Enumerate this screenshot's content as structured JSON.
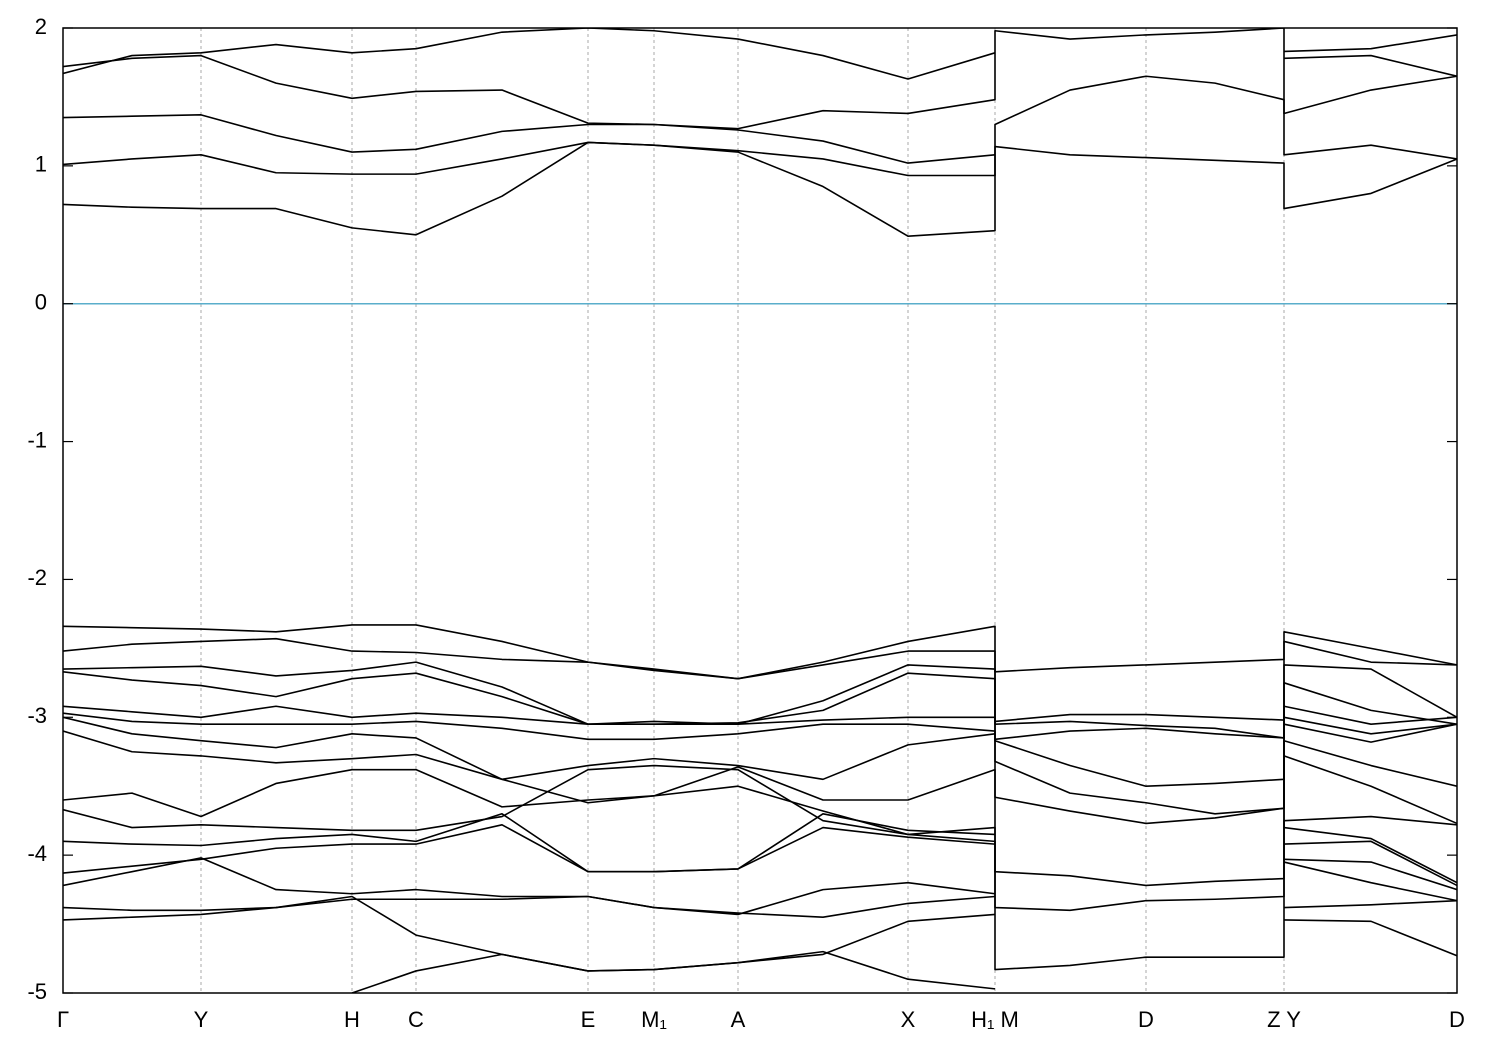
{
  "chart_data": {
    "type": "line",
    "color": "#000000",
    "hline": {
      "value": 0,
      "color": "#5aaecb"
    },
    "grid": "x",
    "xlim": [
      0,
      13.94
    ],
    "ylim": [
      -5,
      2
    ],
    "yticks": [
      -5,
      -4,
      -3,
      -2,
      -1,
      0,
      1,
      2
    ],
    "xticks": [
      {
        "value": 0,
        "label": "Γ"
      },
      {
        "value": 1.38,
        "label": "Y"
      },
      {
        "value": 2.89,
        "label": "H"
      },
      {
        "value": 3.53,
        "label": "C"
      },
      {
        "value": 5.25,
        "label": "E"
      },
      {
        "value": 5.91,
        "label": "M₁"
      },
      {
        "value": 6.75,
        "label": "A"
      },
      {
        "value": 8.45,
        "label": "X"
      },
      {
        "value": 9.32,
        "label": "H₁ M"
      },
      {
        "value": 10.83,
        "label": "D"
      },
      {
        "value": 12.21,
        "label": "Z Y"
      },
      {
        "value": 13.94,
        "label": "D"
      }
    ],
    "x": [
      0,
      0.69,
      1.38,
      2.13,
      2.89,
      3.53,
      4.39,
      5.25,
      5.91,
      6.75,
      7.6,
      8.45,
      9.32,
      9.32,
      10.07,
      10.83,
      11.52,
      12.21,
      12.21,
      13.08,
      13.94
    ],
    "series": [
      {
        "values": [
          0.72,
          0.7,
          0.69,
          0.69,
          0.55,
          0.5,
          0.78,
          1.17,
          1.15,
          1.1,
          0.85,
          0.49,
          0.53,
          1.14,
          1.08,
          1.06,
          1.04,
          1.02,
          0.69,
          0.8,
          1.05
        ]
      },
      {
        "values": [
          1.01,
          1.05,
          1.08,
          0.95,
          0.94,
          0.94,
          1.05,
          1.17,
          1.15,
          1.11,
          1.05,
          0.93,
          0.93,
          1.3,
          1.55,
          1.65,
          1.6,
          1.48,
          1.08,
          1.15,
          1.05
        ]
      },
      {
        "values": [
          1.35,
          1.36,
          1.37,
          1.22,
          1.1,
          1.12,
          1.25,
          1.3,
          1.3,
          1.27,
          1.4,
          1.38,
          1.48,
          1.98,
          1.92,
          1.95,
          1.97,
          2.0,
          1.38,
          1.55,
          1.65
        ]
      },
      {
        "values": [
          1.72,
          1.78,
          1.8,
          1.6,
          1.49,
          1.54,
          1.55,
          1.31,
          1.3,
          1.26,
          1.18,
          1.02,
          1.08,
          null,
          null,
          null,
          null,
          null,
          1.78,
          1.8,
          1.65
        ]
      },
      {
        "values": [
          1.67,
          1.8,
          1.82,
          1.88,
          1.82,
          1.85,
          1.97,
          2.0,
          1.98,
          1.92,
          1.8,
          1.63,
          1.82,
          null,
          null,
          null,
          null,
          null,
          1.83,
          1.85,
          1.95
        ]
      },
      {
        "values": [
          -2.34,
          -2.35,
          -2.36,
          -2.38,
          -2.33,
          -2.33,
          -2.45,
          -2.6,
          -2.65,
          -2.72,
          -2.6,
          -2.45,
          -2.34,
          -2.67,
          -2.64,
          -2.62,
          -2.6,
          -2.58,
          -2.38,
          -2.5,
          -2.62
        ]
      },
      {
        "values": [
          -2.52,
          -2.47,
          -2.45,
          -2.43,
          -2.52,
          -2.53,
          -2.58,
          -2.6,
          -2.66,
          -2.72,
          -2.62,
          -2.52,
          -2.52,
          -3.03,
          -2.98,
          -2.98,
          -3.0,
          -3.02,
          -2.45,
          -2.6,
          -2.62
        ]
      },
      {
        "values": [
          -2.65,
          -2.64,
          -2.63,
          -2.7,
          -2.66,
          -2.6,
          -2.78,
          -3.05,
          -3.05,
          -3.05,
          -2.88,
          -2.62,
          -2.65,
          -3.05,
          -3.03,
          -3.06,
          -3.08,
          -3.15,
          -2.62,
          -2.65,
          -3.0
        ]
      },
      {
        "values": [
          -2.67,
          -2.73,
          -2.77,
          -2.85,
          -2.72,
          -2.68,
          -2.85,
          -3.05,
          -3.05,
          -3.04,
          -2.95,
          -2.68,
          -2.72,
          -3.16,
          -3.1,
          -3.08,
          -3.12,
          -3.15,
          -2.75,
          -2.95,
          -3.05
        ]
      },
      {
        "values": [
          -2.92,
          -2.96,
          -3.0,
          -2.92,
          -3.0,
          -2.97,
          -3.0,
          -3.05,
          -3.03,
          -3.05,
          -3.02,
          -3.0,
          -3.0,
          -3.17,
          -3.35,
          -3.5,
          -3.48,
          -3.45,
          -2.92,
          -3.05,
          -3.0
        ]
      },
      {
        "values": [
          -2.97,
          -3.03,
          -3.05,
          -3.05,
          -3.05,
          -3.03,
          -3.08,
          -3.16,
          -3.16,
          -3.12,
          -3.05,
          -3.05,
          -3.1,
          -3.32,
          -3.55,
          -3.62,
          -3.7,
          -3.66,
          -3.0,
          -3.12,
          -3.05
        ]
      },
      {
        "values": [
          -3.0,
          -3.12,
          -3.17,
          -3.22,
          -3.12,
          -3.15,
          -3.45,
          -3.35,
          -3.3,
          -3.35,
          -3.45,
          -3.2,
          -3.12,
          -3.58,
          -3.68,
          -3.77,
          -3.73,
          -3.66,
          -3.05,
          -3.18,
          -3.05
        ]
      },
      {
        "values": [
          -3.1,
          -3.25,
          -3.28,
          -3.33,
          -3.3,
          -3.27,
          -3.45,
          -3.62,
          -3.57,
          -3.5,
          -3.68,
          -3.85,
          -3.9,
          -4.12,
          -4.15,
          -4.22,
          -4.19,
          -4.17,
          -3.17,
          -3.35,
          -3.5
        ]
      },
      {
        "values": [
          -3.6,
          -3.55,
          -3.72,
          -3.48,
          -3.38,
          -3.38,
          -3.65,
          -3.6,
          -3.57,
          -3.36,
          -3.6,
          -3.6,
          -3.38,
          -4.38,
          -4.4,
          -4.33,
          -4.32,
          -4.3,
          -3.28,
          -3.5,
          -3.77
        ]
      },
      {
        "values": [
          -3.67,
          -3.8,
          -3.78,
          -3.8,
          -3.82,
          -3.82,
          -3.72,
          -3.38,
          -3.35,
          -3.38,
          -3.75,
          -3.85,
          -3.8,
          -4.83,
          -4.8,
          -4.74,
          -4.74,
          -4.74,
          -3.75,
          -3.72,
          -3.78
        ]
      },
      {
        "values": [
          -3.9,
          -3.92,
          -3.93,
          -3.88,
          -3.85,
          -3.9,
          -3.7,
          -4.12,
          -4.12,
          -4.1,
          -3.7,
          -3.82,
          -3.85,
          null,
          null,
          null,
          null,
          null,
          -3.8,
          -3.88,
          -4.2
        ]
      },
      {
        "values": [
          -4.13,
          -4.08,
          -4.03,
          -3.95,
          -3.92,
          -3.92,
          -3.78,
          -4.12,
          -4.12,
          -4.1,
          -3.8,
          -3.87,
          -3.92,
          null,
          null,
          null,
          null,
          null,
          -3.92,
          -3.9,
          -4.22
        ]
      },
      {
        "values": [
          -4.22,
          -4.12,
          -4.02,
          -4.25,
          -4.28,
          -4.25,
          -4.3,
          -4.3,
          -4.38,
          -4.43,
          -4.25,
          -4.2,
          -4.28,
          null,
          null,
          null,
          null,
          null,
          -4.03,
          -4.05,
          -4.25
        ]
      },
      {
        "values": [
          -4.38,
          -4.4,
          -4.4,
          -4.38,
          -4.32,
          -4.32,
          -4.32,
          -4.3,
          -4.38,
          -4.42,
          -4.45,
          -4.35,
          -4.3,
          null,
          null,
          null,
          null,
          null,
          -4.05,
          -4.2,
          -4.33
        ]
      },
      {
        "values": [
          -4.47,
          -4.45,
          -4.43,
          -4.38,
          -4.3,
          -4.58,
          -4.72,
          -4.84,
          -4.83,
          -4.78,
          -4.72,
          -4.48,
          -4.43,
          null,
          null,
          null,
          null,
          null,
          -4.38,
          -4.36,
          -4.33
        ]
      },
      {
        "values": [
          null,
          null,
          null,
          null,
          -5.0,
          -4.84,
          -4.72,
          -4.84,
          -4.83,
          -4.78,
          -4.7,
          -4.9,
          -4.97,
          null,
          null,
          null,
          null,
          null,
          -4.47,
          -4.48,
          -4.73
        ]
      }
    ]
  }
}
